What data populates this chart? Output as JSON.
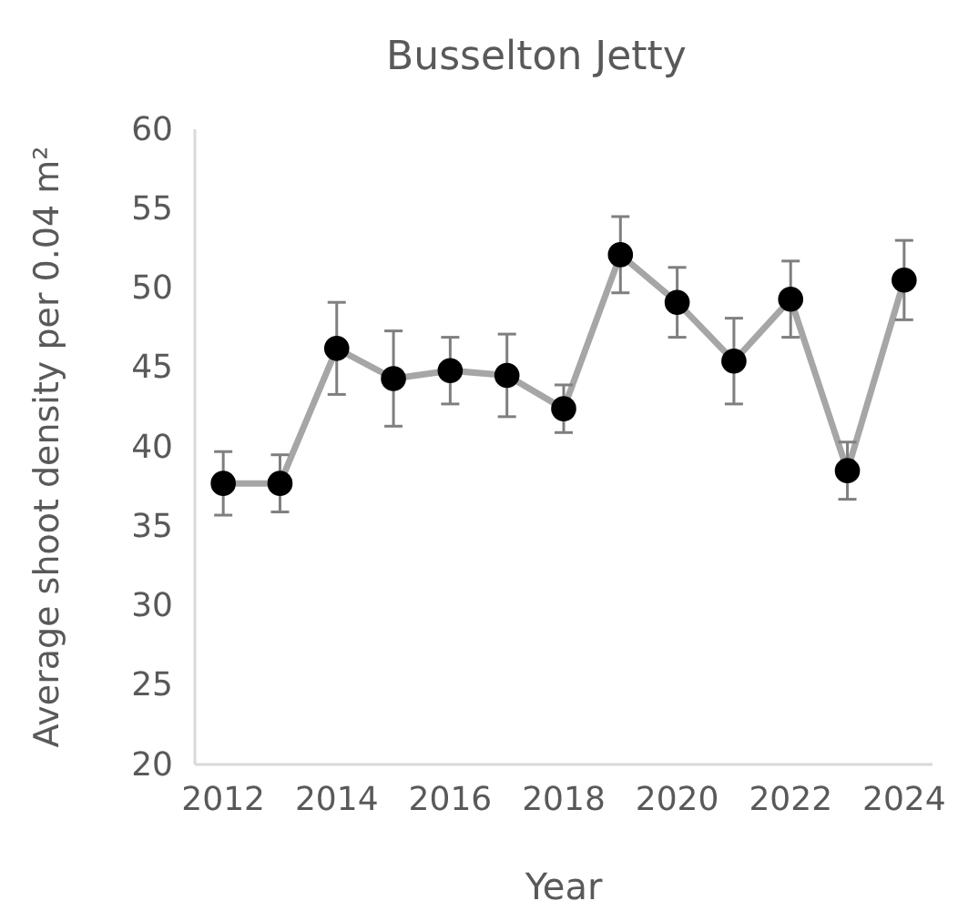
{
  "chart_data": {
    "type": "line",
    "title": "Busselton Jetty",
    "xlabel": "Year",
    "ylabel": "Average shoot density per 0.04 m²",
    "x": [
      2012,
      2013,
      2014,
      2015,
      2016,
      2017,
      2018,
      2019,
      2020,
      2021,
      2022,
      2023,
      2024
    ],
    "series": [
      {
        "color": "#a6a6a6",
        "values": [
          37.7,
          37.7,
          46.2,
          44.3,
          44.8,
          44.5,
          42.4,
          52.1,
          49.1,
          45.4,
          49.3,
          38.5,
          50.5
        ],
        "errors": [
          2.0,
          1.8,
          2.9,
          3.0,
          2.1,
          2.6,
          1.5,
          2.4,
          2.2,
          2.7,
          2.4,
          1.8,
          2.5
        ]
      }
    ],
    "marker": "circle",
    "line_style": "solid",
    "grid": false,
    "xlim": [
      2011.5,
      2024.5
    ],
    "xticks": [
      2012,
      2014,
      2016,
      2018,
      2020,
      2022,
      2024
    ],
    "ylim": [
      20,
      60
    ],
    "yticks": [
      20,
      25,
      30,
      35,
      40,
      45,
      50,
      55,
      60
    ]
  }
}
